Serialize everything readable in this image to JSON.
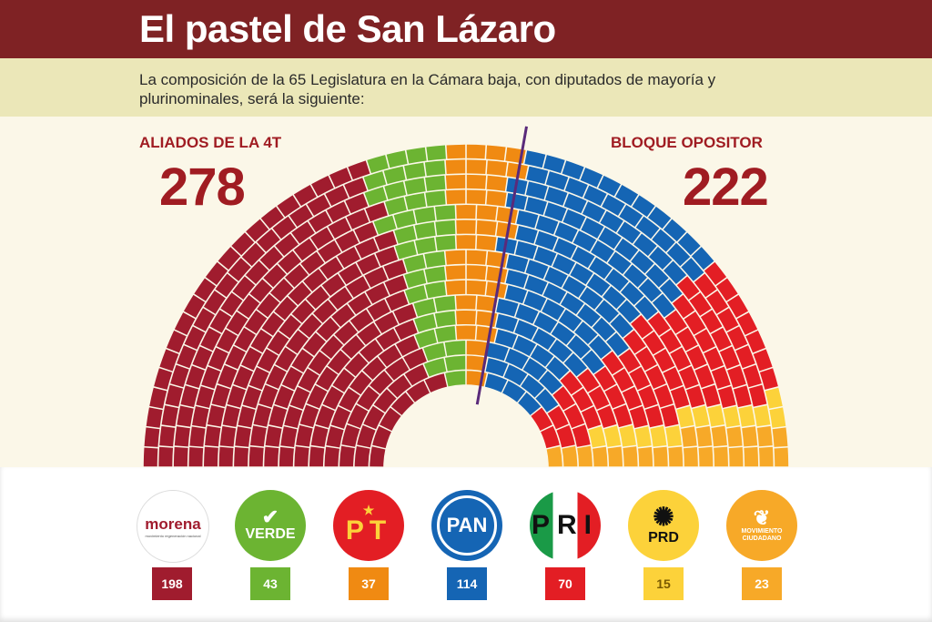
{
  "header": {
    "title": "El pastel de San Lázaro",
    "subtitle": "La composición de la 65 Legislatura en la Cámara baja, con diputados de mayoría y plurinominales, será la siguiente:"
  },
  "blocs": {
    "left_label": "ALIADOS DE LA 4T",
    "left_total": "278",
    "right_label": "BLOQUE  OPOSITOR",
    "right_total": "222"
  },
  "chart_data": {
    "type": "parliament",
    "total_seats": 500,
    "series": [
      {
        "name": "morena",
        "values": [
          198
        ],
        "color": "#a01c2e"
      },
      {
        "name": "VERDE",
        "values": [
          43
        ],
        "color": "#6cb432"
      },
      {
        "name": "PT",
        "values": [
          37
        ],
        "color": "#f08a12"
      },
      {
        "name": "PAN",
        "values": [
          114
        ],
        "color": "#1565b4"
      },
      {
        "name": "PRI",
        "values": [
          70
        ],
        "color": "#e31e24"
      },
      {
        "name": "PRD",
        "values": [
          15
        ],
        "color": "#fcd23a"
      },
      {
        "name": "MOVIMIENTO CIUDADANO",
        "values": [
          23
        ],
        "color": "#f7a928"
      }
    ]
  },
  "parties": [
    {
      "key": "morena",
      "logo_text": "morena",
      "logo_subtext": "movimiento regeneración nacional",
      "count": "198",
      "color": "#a01c2e"
    },
    {
      "key": "verde",
      "logo_text": "VERDE",
      "count": "43",
      "color": "#6cb432"
    },
    {
      "key": "pt",
      "logo_text": "PT",
      "count": "37",
      "color": "#f08a12"
    },
    {
      "key": "pan",
      "logo_text": "PAN",
      "count": "114",
      "color": "#1565b4"
    },
    {
      "key": "pri",
      "logo_text": "PRI",
      "count": "70",
      "color": "#e31e24"
    },
    {
      "key": "prd",
      "logo_text": "PRD",
      "count": "15",
      "color": "#fcd23a"
    },
    {
      "key": "mc",
      "logo_text": "MOVIMIENTO CIUDADANO",
      "count": "23",
      "color": "#f7a928"
    }
  ]
}
